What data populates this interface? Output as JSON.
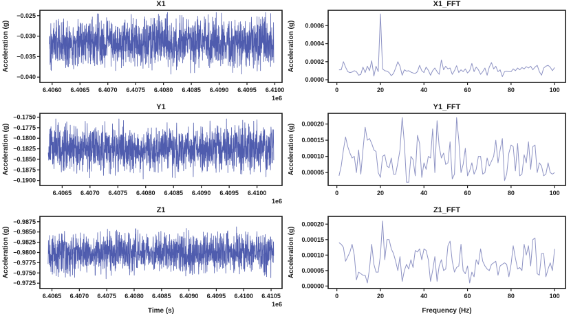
{
  "figure": {
    "background": "#ffffff",
    "text_color": "#1a1a1a",
    "spine_color": "#1a1a1a"
  },
  "chart_data": [
    {
      "id": "x1",
      "type": "line",
      "title": "X1",
      "xlabel": "",
      "ylabel": "Acceleration (g)",
      "offset_text": "1e6",
      "grid": false,
      "legend": false,
      "xlim": [
        6405780,
        6410130
      ],
      "ylim": [
        -0.0413,
        -0.0237
      ],
      "xticks": [
        6406000,
        6406500,
        6407000,
        6407500,
        6408000,
        6408500,
        6409000,
        6409500,
        6410000
      ],
      "xtick_labels": [
        "6.4060",
        "6.4065",
        "6.4070",
        "6.4075",
        "6.4080",
        "6.4085",
        "6.4090",
        "6.4095",
        "6.4100"
      ],
      "yticks": [
        -0.025,
        -0.03,
        -0.035,
        -0.04
      ],
      "ytick_labels": [
        "−0.025",
        "−0.030",
        "−0.035",
        "−0.040"
      ],
      "line_color": "#3c4aa5",
      "line_width": 0.8,
      "signal": "dense-random-noise",
      "noise": {
        "n": 1500,
        "x_start": 6405950,
        "x_end": 6409980,
        "mean": -0.0316,
        "half_range": 0.0088,
        "min": -0.0403,
        "max": -0.0242,
        "seed": 101
      }
    },
    {
      "id": "x1_fft",
      "type": "line",
      "title": "X1_FFT",
      "xlabel": "",
      "ylabel": "Acceleration (g)",
      "offset_text": "",
      "grid": false,
      "legend": false,
      "xlim": [
        -4,
        105
      ],
      "ylim": [
        -3e-05,
        0.00077
      ],
      "xticks": [
        0,
        20,
        40,
        60,
        80,
        100
      ],
      "xtick_labels": [
        "0",
        "20",
        "40",
        "60",
        "80",
        "100"
      ],
      "yticks": [
        0.0,
        0.0002,
        0.0004,
        0.0006
      ],
      "ytick_labels": [
        "0.0000",
        "0.0002",
        "0.0004",
        "0.0006"
      ],
      "line_color": "#8e93c4",
      "line_width": 1,
      "peak": {
        "x": 20,
        "y": 0.00073
      },
      "x_start": 1,
      "x_step": 1,
      "y_unit": 1e-05,
      "y": [
        11,
        11,
        20,
        14,
        9,
        8,
        8.5,
        10,
        9,
        5,
        6,
        14,
        8,
        15,
        10,
        21,
        4,
        15,
        9,
        73,
        12,
        10,
        9.5,
        8,
        4.5,
        7,
        13,
        20,
        15,
        5,
        11,
        9.5,
        10,
        8.5,
        7.5,
        7,
        9,
        16,
        10,
        8,
        14,
        10.5,
        5,
        10,
        13,
        9,
        6,
        22,
        11,
        15,
        12,
        13,
        6,
        10,
        15.5,
        8,
        11,
        9,
        12,
        7.5,
        10,
        18,
        9,
        14,
        11,
        6,
        9,
        13,
        5,
        14,
        19,
        12,
        15,
        9,
        11,
        3.5,
        9,
        9.5,
        9,
        9,
        12,
        10,
        13,
        11,
        13.5,
        12,
        14.5,
        13,
        15,
        11,
        14,
        16,
        9,
        5,
        13,
        15,
        16,
        14,
        10,
        13.5
      ]
    },
    {
      "id": "y1",
      "type": "line",
      "title": "Y1",
      "xlabel": "",
      "ylabel": "Acceleration (g)",
      "offset_text": "1e6",
      "grid": false,
      "legend": false,
      "xlim": [
        6406100,
        6410450
      ],
      "ylim": [
        -0.1912,
        -0.1741
      ],
      "xticks": [
        6406500,
        6407000,
        6407500,
        6408000,
        6408500,
        6409000,
        6409500,
        6410000
      ],
      "xtick_labels": [
        "6.4065",
        "6.4070",
        "6.4075",
        "6.4080",
        "6.4085",
        "6.4090",
        "6.4095",
        "6.4100"
      ],
      "yticks": [
        -0.175,
        -0.1775,
        -0.18,
        -0.1825,
        -0.185,
        -0.1875,
        -0.19
      ],
      "ytick_labels": [
        "−0.1750",
        "−0.1775",
        "−0.1800",
        "−0.1825",
        "−0.1850",
        "−0.1875",
        "−0.1900"
      ],
      "line_color": "#3c4aa5",
      "line_width": 0.8,
      "signal": "dense-random-noise",
      "noise": {
        "n": 1500,
        "x_start": 6406250,
        "x_end": 6410300,
        "mean": -0.1824,
        "half_range": 0.008,
        "min": -0.19,
        "max": -0.1754,
        "seed": 202
      }
    },
    {
      "id": "y1_fft",
      "type": "line",
      "title": "Y1_FFT",
      "xlabel": "",
      "ylabel": "Acceleration (g)",
      "offset_text": "",
      "grid": false,
      "legend": false,
      "xlim": [
        -4,
        105
      ],
      "ylim": [
        1e-05,
        0.000233
      ],
      "xticks": [
        0,
        20,
        40,
        60,
        80,
        100
      ],
      "xtick_labels": [
        "0",
        "20",
        "40",
        "60",
        "80",
        "100"
      ],
      "yticks": [
        5e-05,
        0.0001,
        0.00015,
        0.0002
      ],
      "ytick_labels": [
        "0.00005",
        "0.00010",
        "0.00015",
        "0.00020"
      ],
      "line_color": "#8e93c4",
      "line_width": 1,
      "x_start": 1,
      "x_step": 1,
      "y_unit": 1e-05,
      "y": [
        4,
        7,
        12,
        16,
        13,
        11,
        9.5,
        10,
        5,
        12,
        4.5,
        12,
        19,
        15,
        15.5,
        14,
        12,
        11.5,
        5,
        3.5,
        10,
        10.5,
        7,
        6.5,
        9.5,
        4.5,
        4.5,
        8,
        12,
        22,
        14,
        2,
        2,
        10,
        9,
        4,
        16.5,
        14,
        3.5,
        8,
        6,
        10,
        9.5,
        18.5,
        5,
        21,
        13,
        9.5,
        11,
        7.5,
        8,
        14.5,
        3,
        4.5,
        22,
        15,
        5,
        7.5,
        12.5,
        4,
        5.5,
        8,
        4.5,
        6,
        10,
        10,
        4.5,
        5,
        9.5,
        7,
        8.5,
        10,
        15,
        8,
        12,
        15.5,
        2.5,
        4.5,
        11,
        13.5,
        13,
        5.5,
        14,
        4,
        4.5,
        10.5,
        8,
        14.5,
        6,
        13,
        13.5,
        5,
        8,
        7,
        4,
        4.5,
        8,
        5,
        4.5,
        5
      ]
    },
    {
      "id": "z1",
      "type": "line",
      "title": "Z1",
      "xlabel": "Time (s)",
      "ylabel": "Acceleration (g)",
      "offset_text": "1e6",
      "grid": false,
      "legend": false,
      "y_axis_inverted": true,
      "xlim": [
        6406280,
        6410700
      ],
      "ylim": [
        -0.9712,
        -0.9888
      ],
      "xticks": [
        6406500,
        6407000,
        6407500,
        6408000,
        6408500,
        6409000,
        6409500,
        6410000,
        6410500
      ],
      "xtick_labels": [
        "6.4065",
        "6.4070",
        "6.4075",
        "6.4080",
        "6.4085",
        "6.4090",
        "6.4095",
        "6.4100",
        "6.4105"
      ],
      "yticks": [
        -0.9875,
        -0.985,
        -0.9825,
        -0.98,
        -0.9775,
        -0.975,
        -0.9725
      ],
      "ytick_labels": [
        "−0.9875",
        "−0.9850",
        "−0.9825",
        "−0.9800",
        "−0.9775",
        "−0.9750",
        "−0.9725"
      ],
      "line_color": "#3c4aa5",
      "line_width": 0.8,
      "signal": "dense-random-noise",
      "noise": {
        "n": 1500,
        "x_start": 6406430,
        "x_end": 6410550,
        "mean": -0.9799,
        "half_range": 0.007,
        "min": -0.9866,
        "max": -0.9729,
        "seed": 303
      }
    },
    {
      "id": "z1_fft",
      "type": "line",
      "title": "Z1_FFT",
      "xlabel": "Frequency (Hz)",
      "ylabel": "Acceleration (g)",
      "offset_text": "",
      "grid": false,
      "legend": false,
      "xlim": [
        -4,
        105
      ],
      "ylim": [
        -8e-06,
        0.000225
      ],
      "xticks": [
        0,
        20,
        40,
        60,
        80,
        100
      ],
      "xtick_labels": [
        "0",
        "20",
        "40",
        "60",
        "80",
        "100"
      ],
      "yticks": [
        0.0,
        5e-05,
        0.0001,
        0.00015,
        0.0002
      ],
      "ytick_labels": [
        "0.00000",
        "0.00005",
        "0.00010",
        "0.00015",
        "0.00020"
      ],
      "line_color": "#8e93c4",
      "line_width": 1,
      "peak": {
        "x": 21,
        "y": 0.00021
      },
      "x_start": 1,
      "x_step": 1,
      "y_unit": 1e-05,
      "y": [
        14,
        13.5,
        12.5,
        8,
        9.5,
        11,
        13.5,
        10,
        2,
        4.5,
        4,
        3.5,
        3.5,
        1,
        5.5,
        13.5,
        7,
        4.5,
        4.5,
        10,
        21,
        8.5,
        15,
        15,
        12,
        10.5,
        8,
        5,
        9.5,
        1.5,
        5,
        7,
        5.5,
        8.5,
        6,
        11.5,
        11,
        12,
        8.5,
        12,
        11.5,
        8.5,
        1.5,
        5,
        9.5,
        1.5,
        6.5,
        8.5,
        5,
        5.5,
        13,
        14.5,
        8,
        4.5,
        6,
        6.5,
        13.5,
        5,
        4,
        6.5,
        1,
        4.5,
        3,
        8.5,
        7,
        12,
        8,
        6.5,
        5.5,
        5,
        7,
        7.5,
        8,
        3.5,
        6.5,
        7,
        7.5,
        7,
        3,
        7,
        13,
        9,
        5.5,
        6,
        5,
        13.5,
        10,
        13,
        6.5,
        15,
        15.5,
        4,
        3.5,
        10.5,
        10.5,
        3,
        5.5,
        7.5,
        5,
        12
      ]
    }
  ]
}
